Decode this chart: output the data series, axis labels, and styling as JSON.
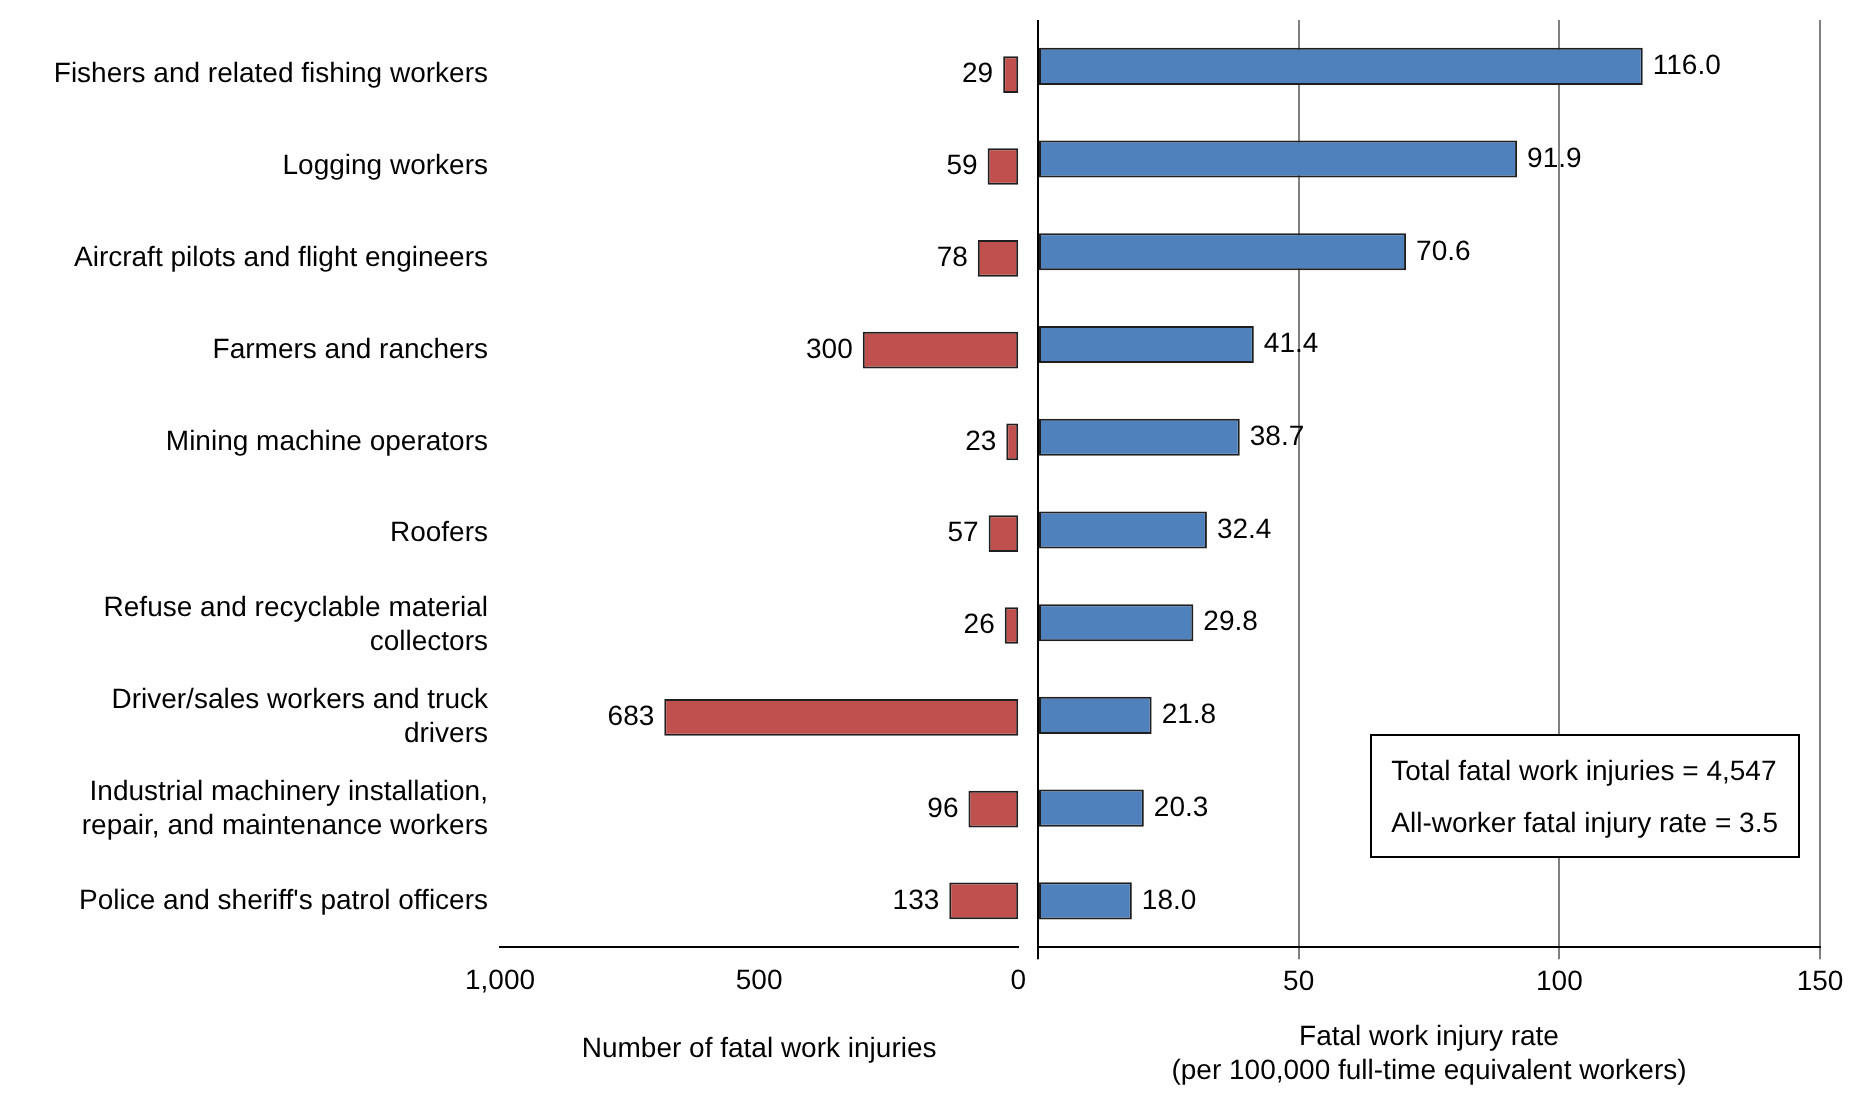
{
  "chart_data": [
    {
      "type": "bar",
      "orientation": "horizontal",
      "categories": [
        "Fishers and related fishing workers",
        "Logging workers",
        "Aircraft pilots and flight engineers",
        "Farmers and ranchers",
        "Mining machine operators",
        "Roofers",
        "Refuse and recyclable material collectors",
        "Driver/sales workers and truck drivers",
        "Industrial machinery installation, repair, and maintenance workers",
        "Police and sheriff's patrol officers"
      ],
      "values": [
        29,
        59,
        78,
        300,
        23,
        57,
        26,
        683,
        96,
        133
      ],
      "color": "#c0504d",
      "xlim": [
        1000,
        0
      ],
      "xticks": [
        {
          "value": 1000,
          "label": "1,000"
        },
        500,
        0
      ],
      "xlabel": "Number of fatal work injuries",
      "grid": false,
      "data_labels": true
    },
    {
      "type": "bar",
      "orientation": "horizontal",
      "values": [
        116.0,
        91.9,
        70.6,
        41.4,
        38.7,
        32.4,
        29.8,
        21.8,
        20.3,
        18.0
      ],
      "value_labels": [
        "116.0",
        "91.9",
        "70.6",
        "41.4",
        "38.7",
        "32.4",
        "29.8",
        "21.8",
        "20.3",
        "18.0"
      ],
      "color": "#4f81bd",
      "xlim": [
        0,
        150
      ],
      "xticks": [
        {
          "value": 0,
          "label": null
        },
        50,
        100,
        150
      ],
      "xlabel": "Fatal work injury rate\n(per 100,000 full-time equivalent workers)",
      "grid": "x",
      "tick_labels": "x",
      "annotations": [
        "Total fatal work injuries = 4,547",
        "All-worker fatal injury rate = 3.5"
      ]
    }
  ]
}
